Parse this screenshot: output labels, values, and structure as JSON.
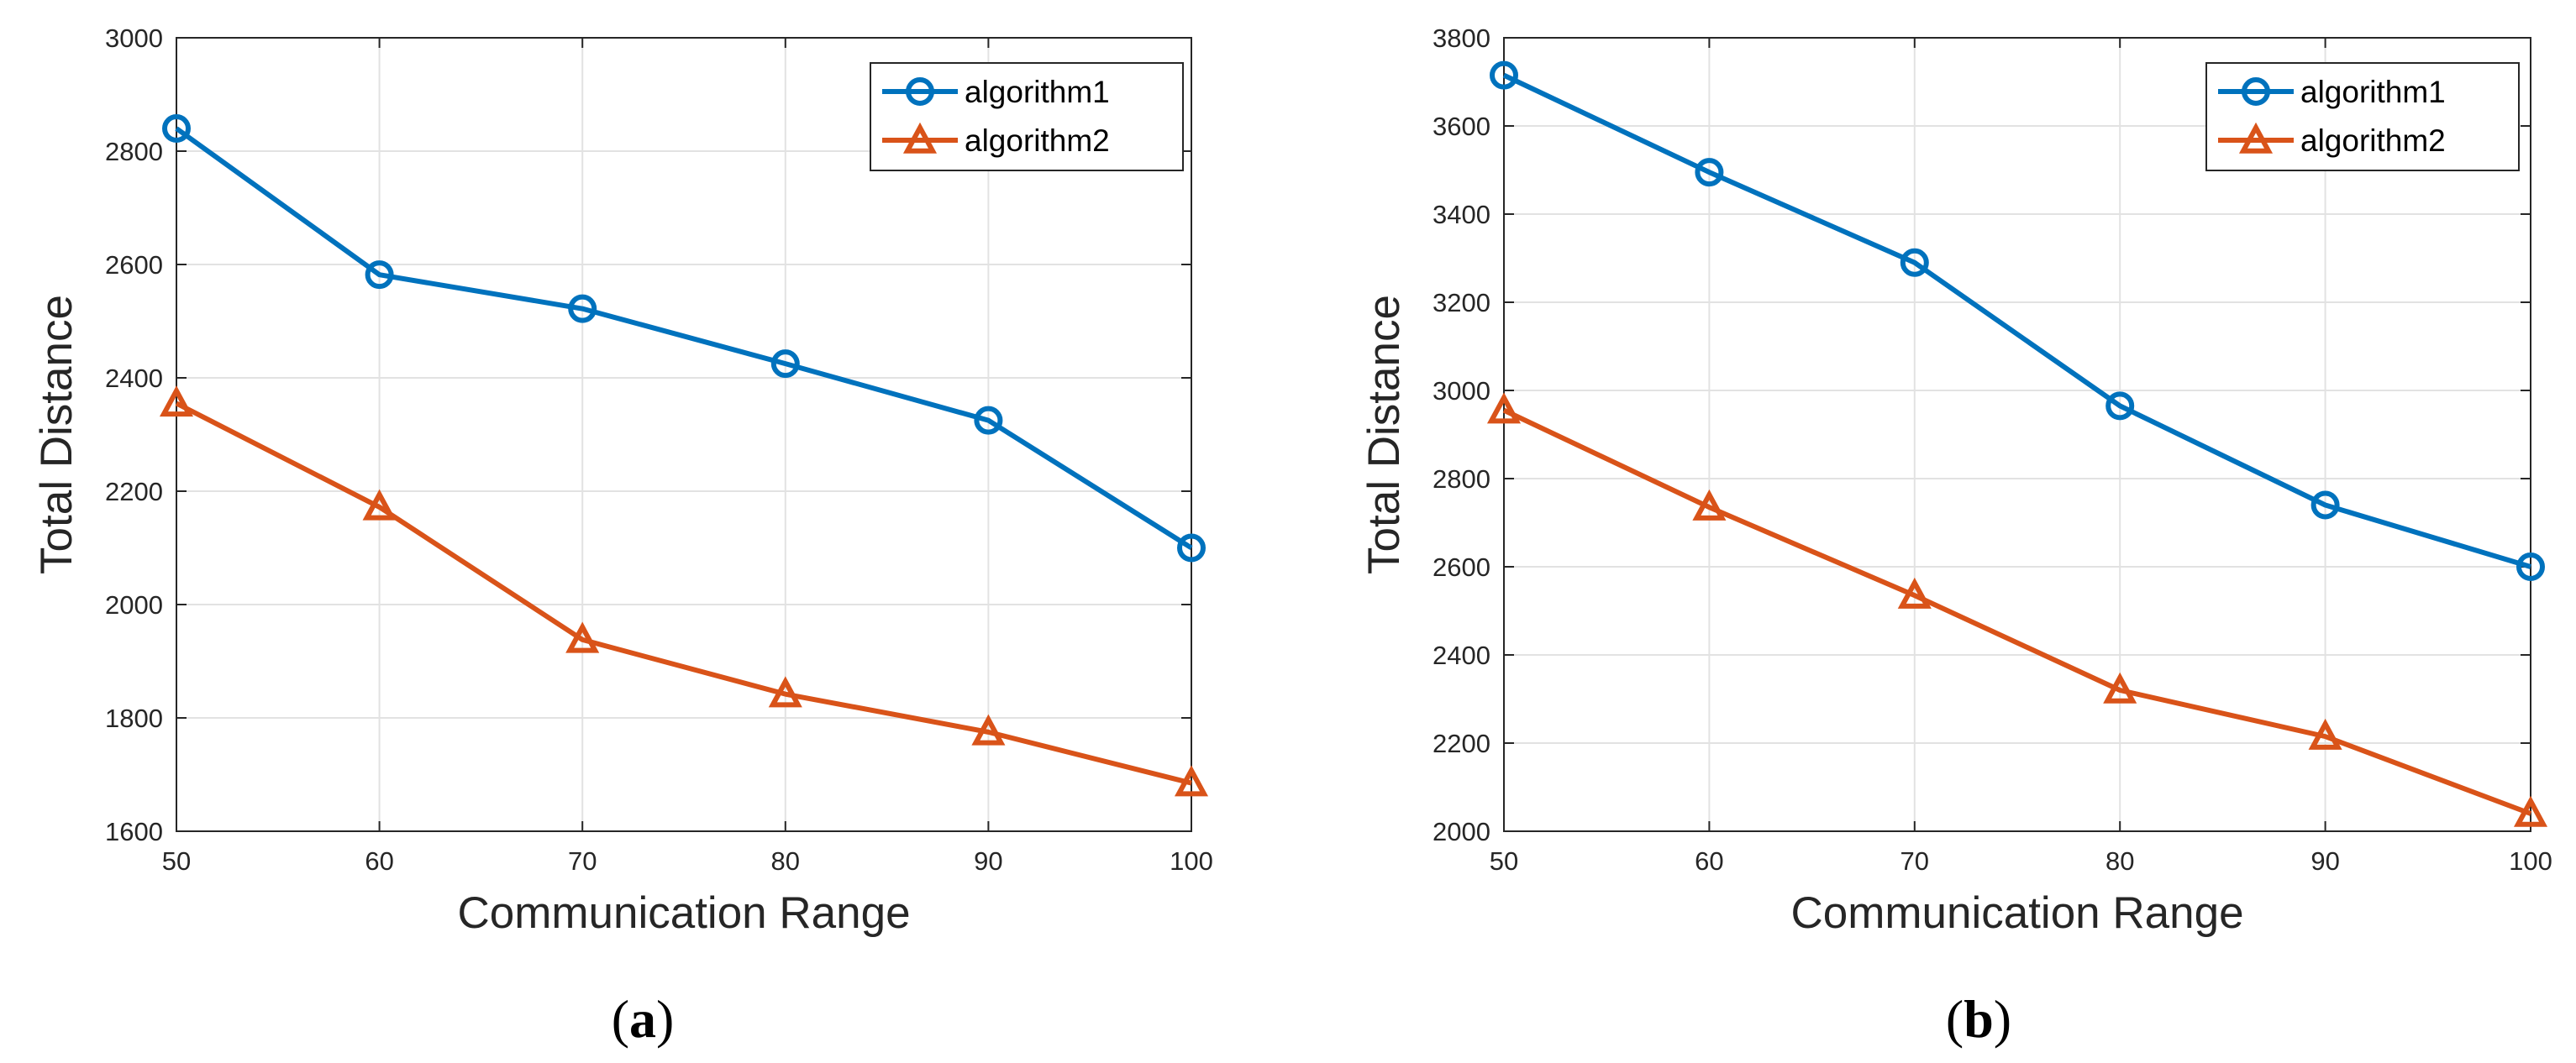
{
  "chart_data": [
    {
      "type": "line",
      "panel_label": "a",
      "xlabel": "Communication Range",
      "ylabel": "Total Distance",
      "x": [
        50,
        60,
        70,
        80,
        90,
        100
      ],
      "xlim": [
        50,
        100
      ],
      "ylim": [
        1600,
        3000
      ],
      "xticks": [
        50,
        60,
        70,
        80,
        90,
        100
      ],
      "yticks": [
        1600,
        1800,
        2000,
        2200,
        2400,
        2600,
        2800,
        3000
      ],
      "grid": true,
      "legend_position": "top-right",
      "series": [
        {
          "name": "algorithm1",
          "marker": "circle",
          "color": "#0072BD",
          "values": [
            2840,
            2582,
            2522,
            2425,
            2325,
            2100
          ]
        },
        {
          "name": "algorithm2",
          "marker": "triangle",
          "color": "#D95319",
          "values": [
            2355,
            2172,
            1938,
            1842,
            1775,
            1685
          ]
        }
      ]
    },
    {
      "type": "line",
      "panel_label": "b",
      "xlabel": "Communication Range",
      "ylabel": "Total Distance",
      "x": [
        50,
        60,
        70,
        80,
        90,
        100
      ],
      "xlim": [
        50,
        100
      ],
      "ylim": [
        2000,
        3800
      ],
      "xticks": [
        50,
        60,
        70,
        80,
        90,
        100
      ],
      "yticks": [
        2000,
        2200,
        2400,
        2600,
        2800,
        3000,
        3200,
        3400,
        3600,
        3800
      ],
      "grid": true,
      "legend_position": "top-right",
      "series": [
        {
          "name": "algorithm1",
          "marker": "circle",
          "color": "#0072BD",
          "values": [
            3715,
            3495,
            3290,
            2965,
            2740,
            2600
          ]
        },
        {
          "name": "algorithm2",
          "marker": "triangle",
          "color": "#D95319",
          "values": [
            2955,
            2735,
            2535,
            2320,
            2215,
            2040
          ]
        }
      ]
    }
  ]
}
